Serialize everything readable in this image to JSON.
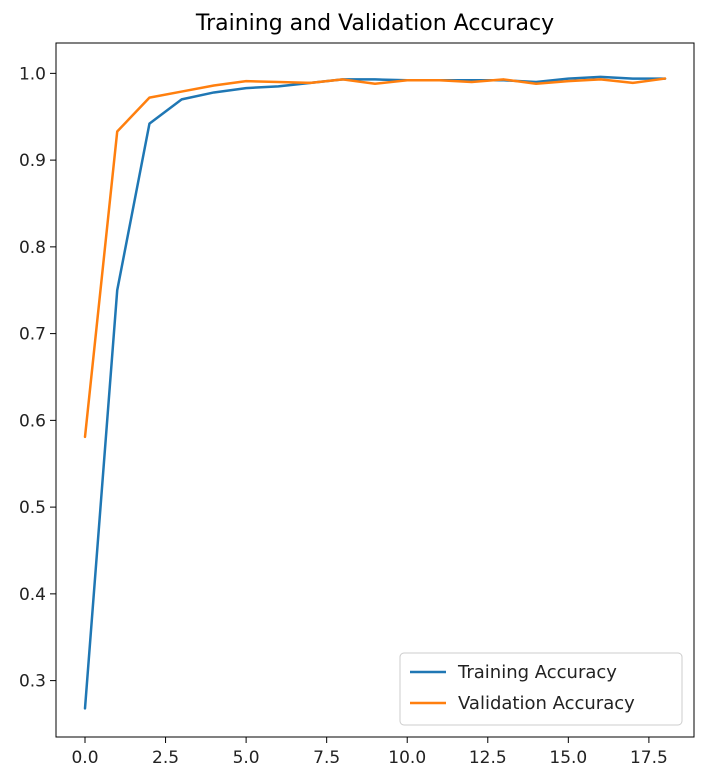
{
  "chart_data": {
    "type": "line",
    "title": "Training and Validation Accuracy",
    "xlabel": "",
    "ylabel": "",
    "xlim": [
      -0.9,
      18.9
    ],
    "ylim": [
      0.235,
      1.035
    ],
    "x_ticks": [
      0.0,
      2.5,
      5.0,
      7.5,
      10.0,
      12.5,
      15.0,
      17.5
    ],
    "x_tick_labels": [
      "0.0",
      "2.5",
      "5.0",
      "7.5",
      "10.0",
      "12.5",
      "15.0",
      "17.5"
    ],
    "y_ticks": [
      0.3,
      0.4,
      0.5,
      0.6,
      0.7,
      0.8,
      0.9,
      1.0
    ],
    "y_tick_labels": [
      "0.3",
      "0.4",
      "0.5",
      "0.6",
      "0.7",
      "0.8",
      "0.9",
      "1.0"
    ],
    "grid": false,
    "legend_position": "lower-right",
    "x": [
      0,
      1,
      2,
      3,
      4,
      5,
      6,
      7,
      8,
      9,
      10,
      11,
      12,
      13,
      14,
      15,
      16,
      17,
      18
    ],
    "series": [
      {
        "name": "Training Accuracy",
        "color": "#1f77b4",
        "values": [
          0.268,
          0.75,
          0.942,
          0.97,
          0.978,
          0.983,
          0.985,
          0.989,
          0.993,
          0.993,
          0.992,
          0.992,
          0.992,
          0.992,
          0.99,
          0.994,
          0.996,
          0.994,
          0.994
        ]
      },
      {
        "name": "Validation Accuracy",
        "color": "#ff7f0e",
        "values": [
          0.581,
          0.933,
          0.972,
          0.979,
          0.986,
          0.991,
          0.99,
          0.989,
          0.993,
          0.988,
          0.992,
          0.992,
          0.99,
          0.993,
          0.988,
          0.991,
          0.993,
          0.989,
          0.994
        ]
      }
    ]
  }
}
